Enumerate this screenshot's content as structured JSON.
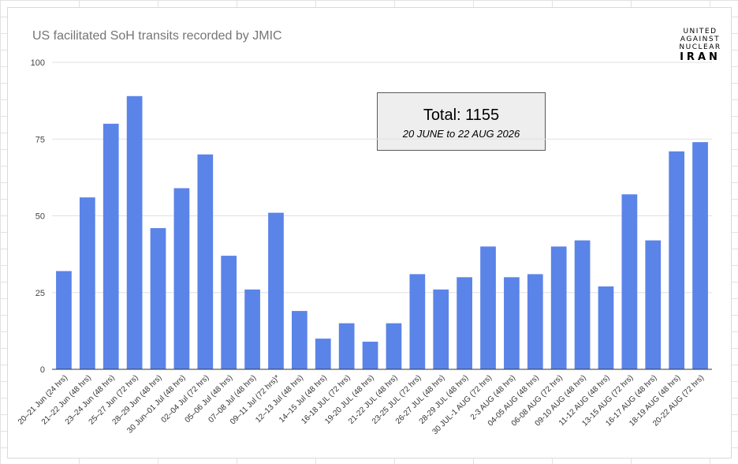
{
  "logo": {
    "line1": "UNITED",
    "line2": "AGAINST",
    "line3": "NUCLEAR",
    "line4": "IRAN"
  },
  "annotation": {
    "total": "Total: 1155",
    "range": "20 JUNE to 22 AUG 2026"
  },
  "colors": {
    "bar": "#5b84e8",
    "gridline": "#e0e0e0",
    "axis": "#333333"
  },
  "chart_data": {
    "type": "bar",
    "title": "US facilitated SoH transits recorded by JMIC",
    "xlabel": "",
    "ylabel": "",
    "ylim": [
      0,
      100
    ],
    "yticks": [
      0,
      25,
      50,
      75,
      100
    ],
    "grid": true,
    "legend": "none",
    "categories": [
      "20–21 Jun (24 hrs)",
      "21–22 Jun (48 hrs)",
      "23–24 Jun (48 hrs)",
      "25–27 Jun (72 hrs)",
      "28–29 Jun (48 hrs)",
      "30 Jun–01 Jul (48 hrs)",
      "02–04 Jul (72 hrs)",
      "05–06 Jul (48 hrs)",
      "07–08 Jul (48 hrs)",
      "09–11 Jul (72 hrs)*",
      "12–13 Jul (48 hrs)",
      "14–15 Jul (48 hrs)",
      "16-18 JUL (72 hrs)",
      "19-20 JUL (48 hrs)",
      "21-22 JUL (48 hrs)",
      "23-25 JUL (72 hrs)",
      "26-27 JUL (48 hrs)",
      "28-29 JUL (48 hrs)",
      "30 JUL-1 AUG (72 hrs)",
      "2-3 AUG (48 hrs)",
      "04-05 AUG (48 hrs)",
      "06-08 AUG (72 hrs)",
      "09-10 AUG (48 hrs)",
      "11-12 AUG (48 hrs)",
      "13-15 AUG (72 hrs)",
      "16-17 AUG (48 hrs)",
      "18-19 AUG (48 hrs)",
      "20-22 AUG (72 hrs)"
    ],
    "values": [
      32,
      56,
      80,
      89,
      46,
      59,
      70,
      37,
      26,
      51,
      19,
      10,
      15,
      9,
      15,
      31,
      26,
      30,
      40,
      30,
      31,
      40,
      42,
      27,
      57,
      42,
      71,
      74
    ]
  }
}
